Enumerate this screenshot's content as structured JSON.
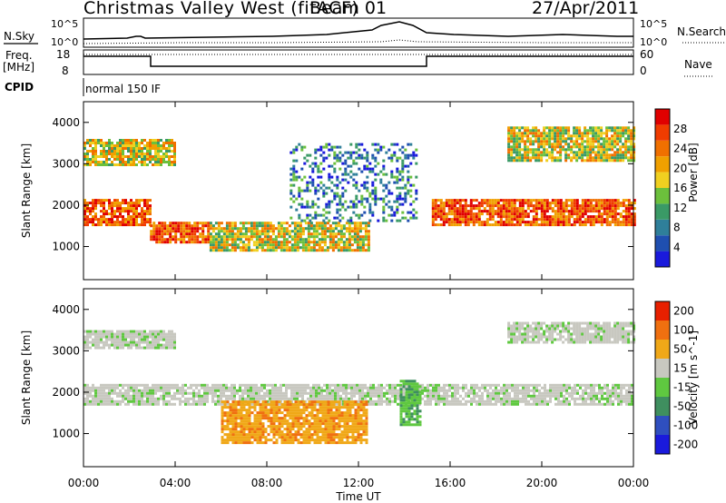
{
  "header": {
    "title": "Christmas Valley West (fitACF)",
    "beam": "Beam 01",
    "date": "27/Apr/2011"
  },
  "summary_panels": {
    "nsky_label": "N.Sky",
    "nsearch_label": "N.Search",
    "noise_ticks": [
      "10^5",
      "10^0"
    ],
    "freq_label": "Freq.",
    "freq_unit": "[MHz]",
    "freq_ticks": [
      "18",
      "8"
    ],
    "nave_label": "Nave",
    "nave_ticks": [
      "60",
      "0"
    ],
    "cpid_label": "CPID",
    "cpid_value": "normal 150 IF"
  },
  "colors": {
    "power_scale": [
      "#1a1adc",
      "#1f4fb0",
      "#2f7f9a",
      "#3a9a66",
      "#6cc03c",
      "#f0d020",
      "#f0a000",
      "#f07000",
      "#f03c00",
      "#e00000"
    ],
    "velocity_scale": [
      "#1a1adc",
      "#2f4fbf",
      "#3f8f5f",
      "#5fc840",
      "#c8c8c0",
      "#f0a818",
      "#f07010",
      "#e82000"
    ]
  },
  "chart_data": [
    {
      "type": "heatmap",
      "title": "",
      "xlabel": "Time UT",
      "ylabel": "Slant Range [km]",
      "xlim": [
        0,
        24
      ],
      "ylim": [
        200,
        4500
      ],
      "x_ticks": [
        "00:00",
        "04:00",
        "08:00",
        "12:00",
        "16:00",
        "20:00",
        "00:00"
      ],
      "y_ticks": [
        "1000",
        "2000",
        "3000",
        "4000"
      ],
      "colorbar_label": "Power [dB]",
      "colorbar_ticks": [
        "4",
        "8",
        "12",
        "16",
        "20",
        "24",
        "28"
      ],
      "bands": [
        {
          "t0": 0.0,
          "t1": 2.9,
          "r0": 1500,
          "r1": 2150,
          "level": "high"
        },
        {
          "t0": 2.9,
          "t1": 5.5,
          "r0": 1100,
          "r1": 1600,
          "level": "high"
        },
        {
          "t0": 5.5,
          "t1": 12.5,
          "r0": 900,
          "r1": 1600,
          "level": "mid"
        },
        {
          "t0": 15.2,
          "t1": 24.0,
          "r0": 1500,
          "r1": 2150,
          "level": "high"
        },
        {
          "t0": 0.0,
          "t1": 4.0,
          "r0": 3000,
          "r1": 3600,
          "level": "mid"
        },
        {
          "t0": 18.5,
          "t1": 24.0,
          "r0": 3100,
          "r1": 3900,
          "level": "mid"
        },
        {
          "t0": 9.0,
          "t1": 14.5,
          "r0": 1600,
          "r1": 3500,
          "level": "low"
        }
      ]
    },
    {
      "type": "heatmap",
      "title": "",
      "xlabel": "Time UT",
      "ylabel": "Slant Range [km]",
      "xlim": [
        0,
        24
      ],
      "ylim": [
        200,
        4500
      ],
      "x_ticks": [
        "00:00",
        "04:00",
        "08:00",
        "12:00",
        "16:00",
        "20:00",
        "00:00"
      ],
      "y_ticks": [
        "1000",
        "2000",
        "3000",
        "4000"
      ],
      "colorbar_label": "Velocity [m s^-1]",
      "colorbar_ticks": [
        "200",
        "100",
        "50",
        "15",
        "-15",
        "-50",
        "-100",
        "-200"
      ],
      "bands": [
        {
          "t0": 0.0,
          "t1": 24.0,
          "r0": 1700,
          "r1": 2200,
          "level": "zero"
        },
        {
          "t0": 0.0,
          "t1": 4.0,
          "r0": 3100,
          "r1": 3500,
          "level": "zero"
        },
        {
          "t0": 18.5,
          "t1": 24.0,
          "r0": 3200,
          "r1": 3700,
          "level": "zero"
        },
        {
          "t0": 6.0,
          "t1": 12.3,
          "r0": 800,
          "r1": 1800,
          "level": "neg"
        },
        {
          "t0": 13.8,
          "t1": 14.7,
          "r0": 1200,
          "r1": 2300,
          "level": "pos"
        }
      ]
    }
  ]
}
